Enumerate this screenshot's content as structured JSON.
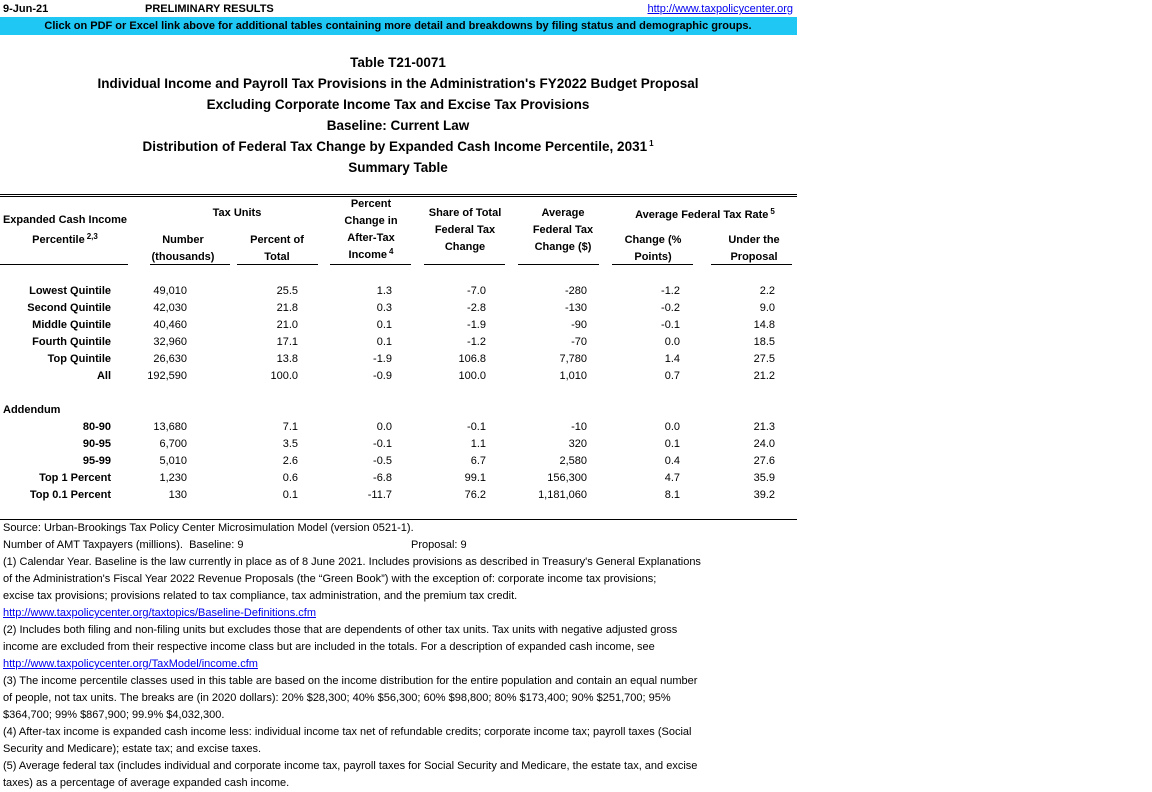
{
  "header": {
    "date": "9-Jun-21",
    "status": "PRELIMINARY RESULTS",
    "link": "http://www.taxpolicycenter.org",
    "banner": "Click on PDF or Excel link above for additional tables containing more detail and breakdowns by filing status and demographic groups."
  },
  "titles": [
    "Table T21-0071",
    "Individual Income and Payroll Tax Provisions in the Administration's FY2022 Budget Proposal",
    "Excluding Corporate Income Tax and Excise Tax Provisions",
    "Baseline: Current Law",
    "Distribution of Federal Tax Change by Expanded Cash Income Percentile, 2031",
    "Summary Table"
  ],
  "title_note": "1",
  "table": {
    "stub": {
      "lines": [
        "Expanded Cash Income",
        "Percentile"
      ],
      "note": "2,3"
    },
    "groups": [
      {
        "label": "Tax Units"
      },
      {
        "label": "Average Federal Tax Rate",
        "note": "5"
      }
    ],
    "columns": [
      {
        "lines": [
          "Number",
          "(thousands)"
        ]
      },
      {
        "lines": [
          "Percent of",
          "Total"
        ]
      },
      {
        "lines": [
          "Percent",
          "Change in",
          "After-Tax",
          "Income"
        ],
        "note": "4"
      },
      {
        "lines": [
          "Share of Total",
          "Federal Tax",
          "Change"
        ]
      },
      {
        "lines": [
          "Average",
          "Federal Tax",
          "Change ($)"
        ]
      },
      {
        "lines": [
          "Change (%",
          "Points)"
        ]
      },
      {
        "lines": [
          "Under the",
          "Proposal"
        ]
      }
    ],
    "rows": [
      [
        "Lowest Quintile",
        "49,010",
        "25.5",
        "1.3",
        "-7.0",
        "-280",
        "-1.2",
        "2.2"
      ],
      [
        "Second Quintile",
        "42,030",
        "21.8",
        "0.3",
        "-2.8",
        "-130",
        "-0.2",
        "9.0"
      ],
      [
        "Middle Quintile",
        "40,460",
        "21.0",
        "0.1",
        "-1.9",
        "-90",
        "-0.1",
        "14.8"
      ],
      [
        "Fourth Quintile",
        "32,960",
        "17.1",
        "0.1",
        "-1.2",
        "-70",
        "0.0",
        "18.5"
      ],
      [
        "Top Quintile",
        "26,630",
        "13.8",
        "-1.9",
        "106.8",
        "7,780",
        "1.4",
        "27.5"
      ],
      [
        "All",
        "192,590",
        "100.0",
        "-0.9",
        "100.0",
        "1,010",
        "0.7",
        "21.2"
      ]
    ],
    "addendum": {
      "label": "Addendum",
      "rows": [
        [
          "80-90",
          "13,680",
          "7.1",
          "0.0",
          "-0.1",
          "-10",
          "0.0",
          "21.3"
        ],
        [
          "90-95",
          "6,700",
          "3.5",
          "-0.1",
          "1.1",
          "320",
          "0.1",
          "24.0"
        ],
        [
          "95-99",
          "5,010",
          "2.6",
          "-0.5",
          "6.7",
          "2,580",
          "0.4",
          "27.6"
        ],
        [
          "Top 1 Percent",
          "1,230",
          "0.6",
          "-6.8",
          "99.1",
          "156,300",
          "4.7",
          "35.9"
        ],
        [
          "Top 0.1 Percent",
          "130",
          "0.1",
          "-11.7",
          "76.2",
          "1,181,060",
          "8.1",
          "39.2"
        ]
      ]
    }
  },
  "source": "Source: Urban-Brookings Tax Policy Center Microsimulation Model (version 0521-1).",
  "amt": {
    "label": "Number of AMT Taxpayers (millions).",
    "baseline": "Baseline: 9",
    "proposal": "Proposal: 9"
  },
  "notes": [
    {
      "text": "(1) Calendar Year. Baseline is the law currently in place as of 8 June 2021. Includes provisions as described in Treasury's General Explanations"
    },
    {
      "text": "of the Administration's Fiscal Year 2022 Revenue Proposals (the “Green Book”) with the exception of: corporate income tax provisions;"
    },
    {
      "text": "excise tax provisions; provisions related to tax compliance, tax administration, and the premium tax credit."
    },
    {
      "link": "http://www.taxpolicycenter.org/taxtopics/Baseline-Definitions.cfm"
    },
    {
      "text": "(2) Includes both filing and non-filing units but excludes those that are dependents of other tax units. Tax units with negative adjusted gross"
    },
    {
      "text": "income are excluded from their respective income class but are included in the totals. For a description of expanded cash income, see"
    },
    {
      "link": "http://www.taxpolicycenter.org/TaxModel/income.cfm"
    },
    {
      "text": "(3) The income percentile classes used in this table are based on the income distribution for the entire population and contain an equal number"
    },
    {
      "text": "of people, not tax units. The breaks are (in 2020 dollars): 20% $28,300; 40% $56,300; 60% $98,800; 80% $173,400; 90% $251,700; 95%"
    },
    {
      "text": "$364,700; 99% $867,900; 99.9% $4,032,300."
    },
    {
      "text": "(4) After-tax income is expanded cash income less: individual income tax net of refundable credits; corporate income tax; payroll taxes (Social"
    },
    {
      "text": "Security and Medicare); estate tax; and excise taxes."
    },
    {
      "text": "(5) Average federal tax (includes individual and corporate income tax, payroll taxes for Social Security and Medicare, the estate tax, and excise"
    },
    {
      "text": "taxes) as a percentage of average expanded cash income."
    }
  ]
}
